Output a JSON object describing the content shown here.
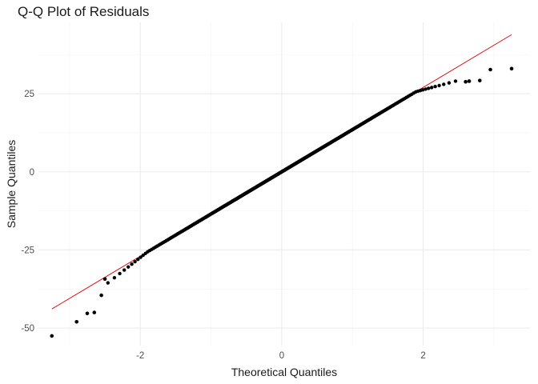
{
  "chart_data": {
    "type": "scatter",
    "title": "Q-Q Plot of Residuals",
    "xlabel": "Theoretical Quantiles",
    "ylabel": "Sample Quantiles",
    "xlim": [
      -3.44,
      3.51
    ],
    "ylim": [
      -55.6,
      47.8
    ],
    "x_ticks": [
      -2,
      0,
      2
    ],
    "x_tick_labels": [
      "-2",
      "0",
      "2"
    ],
    "y_ticks": [
      -50,
      -25,
      0,
      25
    ],
    "y_tick_labels": [
      "-50",
      "-25",
      "0",
      "25"
    ],
    "grid": true,
    "reference_line": {
      "intercept": 0.0,
      "slope": 13.5,
      "color": "#dd0000"
    },
    "point_color": "#000000",
    "n_points": 500,
    "body_range_z": [
      -2.5,
      2.5
    ],
    "outliers": [
      [
        -3.25,
        -52.5
      ],
      [
        -2.9,
        -48.0
      ],
      [
        -2.75,
        -45.3
      ],
      [
        -2.65,
        -45.0
      ],
      [
        -2.55,
        -39.5
      ],
      [
        -2.5,
        -34.3
      ],
      [
        2.6,
        28.8
      ],
      [
        2.65,
        29.0
      ],
      [
        2.8,
        29.2
      ],
      [
        2.95,
        32.7
      ],
      [
        3.25,
        33.0
      ]
    ]
  }
}
